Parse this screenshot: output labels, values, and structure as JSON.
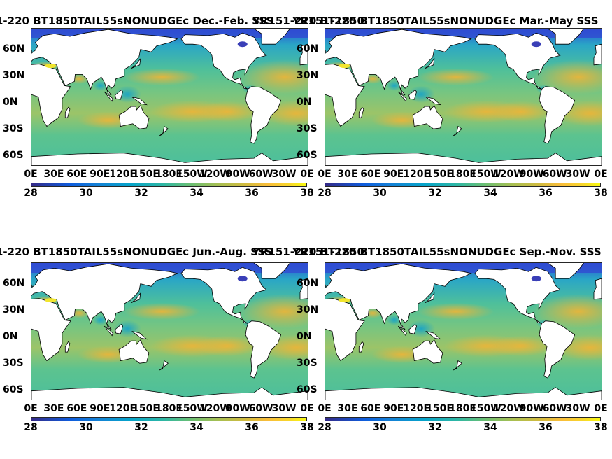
{
  "panels": [
    {
      "title": "1-220 BT1850TAIL55sNONUDGEc Dec.-Feb. SSS",
      "overlay_title": "YR151-220 BT1850"
    },
    {
      "title": "YR151-220 BT1850TAIL55sNONUDGEc Mar.-May SSS",
      "overlay_title": ""
    },
    {
      "title": "1-220 BT1850TAIL55sNONUDGEc Jun.-Aug. SSS",
      "overlay_title": "YR151-220 BT1850"
    },
    {
      "title": "YR151-220 BT1850TAIL55sNONUDGEc Sep.-Nov. SSS",
      "overlay_title": ""
    }
  ],
  "latitude_labels": [
    "60N",
    "30N",
    "0N",
    "30S",
    "60S"
  ],
  "longitude_labels": [
    "0E",
    "30E",
    "60E",
    "90E",
    "120E",
    "150E",
    "180E",
    "150W",
    "120W",
    "90W",
    "60W",
    "30W",
    "0E"
  ],
  "colorbar": {
    "ticks": [
      "28",
      "30",
      "32",
      "34",
      "36",
      "38"
    ],
    "colormap": "parula",
    "min": 28,
    "max": 38
  },
  "colors": {
    "land": "#ffffff",
    "ocean_base": "#63c893",
    "high_salinity": "#e6b23f",
    "low_salinity": "#2a6be0",
    "coast": "#000000"
  }
}
